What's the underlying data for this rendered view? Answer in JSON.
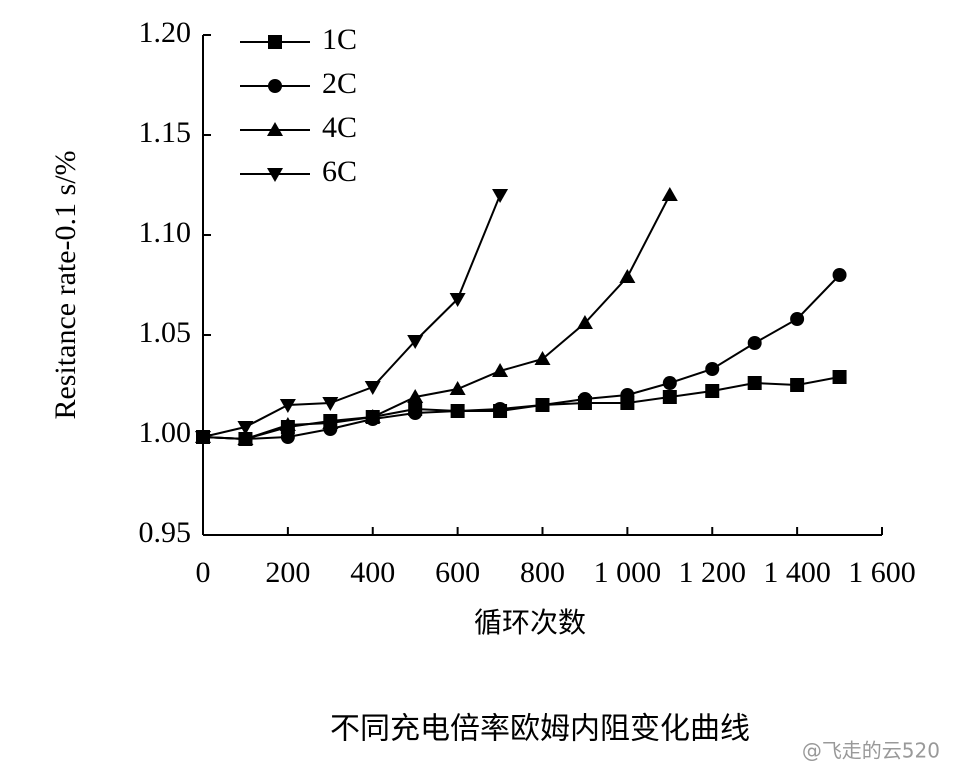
{
  "chart_data": {
    "type": "line",
    "y_label": "Resitance rate-0.1 s/%",
    "x_label": "循环次数",
    "caption": "不同充电倍率欧姆内阻变化曲线",
    "watermark": "@飞走的云520",
    "xlim": [
      0,
      1600
    ],
    "xticks": [
      0,
      200,
      400,
      600,
      800,
      {
        "value": 1000,
        "label": "1 000"
      },
      {
        "value": 1200,
        "label": "1 200"
      },
      {
        "value": 1400,
        "label": "1 400"
      },
      {
        "value": 1600,
        "label": "1 600"
      }
    ],
    "ylim": [
      0.95,
      1.2
    ],
    "yticks": [
      0.95,
      {
        "value": 1.0,
        "label": "1.00"
      },
      1.05,
      {
        "value": 1.1,
        "label": "1.10"
      },
      1.15,
      {
        "value": 1.2,
        "label": "1.20"
      }
    ],
    "legend": "top-left",
    "series": [
      {
        "name": "1C",
        "color": "#000000",
        "marker": "square",
        "x": [
          0,
          100,
          200,
          300,
          400,
          500,
          600,
          700,
          800,
          900,
          1000,
          1100,
          1200,
          1300,
          1400,
          1500
        ],
        "values": [
          0.999,
          0.998,
          1.004,
          1.007,
          1.009,
          1.013,
          1.012,
          1.012,
          1.015,
          1.016,
          1.016,
          1.019,
          1.022,
          1.026,
          1.025,
          1.029
        ]
      },
      {
        "name": "2C",
        "color": "#000000",
        "marker": "circle",
        "x": [
          0,
          100,
          200,
          300,
          400,
          500,
          600,
          700,
          800,
          900,
          1000,
          1100,
          1200,
          1300,
          1400,
          1500
        ],
        "values": [
          0.999,
          0.998,
          0.999,
          1.003,
          1.008,
          1.011,
          1.012,
          1.013,
          1.015,
          1.018,
          1.02,
          1.026,
          1.033,
          1.046,
          1.058,
          1.08
        ]
      },
      {
        "name": "4C",
        "color": "#000000",
        "marker": "triangle",
        "x": [
          0,
          100,
          200,
          300,
          400,
          500,
          600,
          700,
          800,
          900,
          1000,
          1100
        ],
        "values": [
          0.999,
          0.998,
          1.005,
          1.006,
          1.009,
          1.019,
          1.023,
          1.032,
          1.038,
          1.056,
          1.079,
          1.12
        ]
      },
      {
        "name": "6C",
        "color": "#000000",
        "marker": "triangle-down",
        "x": [
          0,
          100,
          200,
          300,
          400,
          500,
          600,
          700
        ],
        "values": [
          0.999,
          1.004,
          1.015,
          1.016,
          1.024,
          1.047,
          1.068,
          1.12
        ]
      }
    ]
  }
}
